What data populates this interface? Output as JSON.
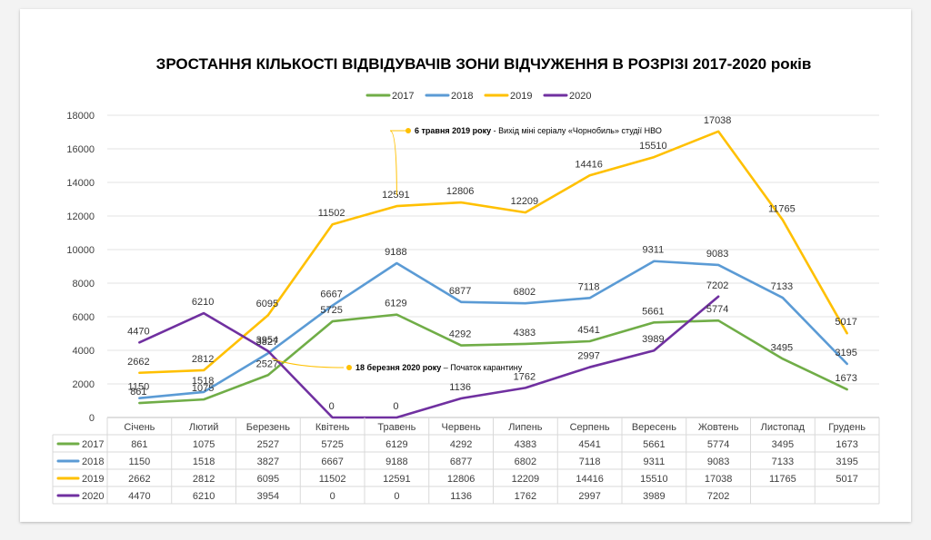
{
  "chart_data": {
    "type": "line",
    "title": "ЗРОСТАННЯ КІЛЬКОСТІ ВІДВІДУВАЧІВ ЗОНИ ВІДЧУЖЕННЯ В РОЗРІЗІ 2017-2020 років",
    "categories": [
      "Січень",
      "Лютий",
      "Березень",
      "Квітень",
      "Травень",
      "Червень",
      "Липень",
      "Серпень",
      "Вересень",
      "Жовтень",
      "Листопад",
      "Грудень"
    ],
    "ylim": [
      0,
      18000
    ],
    "yticks": [
      0,
      2000,
      4000,
      6000,
      8000,
      10000,
      12000,
      14000,
      16000,
      18000
    ],
    "grid": true,
    "legend_position": "top",
    "series": [
      {
        "name": "2017",
        "color": "#70ad47",
        "values": [
          861,
          1075,
          2527,
          5725,
          6129,
          4292,
          4383,
          4541,
          5661,
          5774,
          3495,
          1673
        ]
      },
      {
        "name": "2018",
        "color": "#5b9bd5",
        "values": [
          1150,
          1518,
          3827,
          6667,
          9188,
          6877,
          6802,
          7118,
          9311,
          9083,
          7133,
          3195
        ]
      },
      {
        "name": "2019",
        "color": "#ffc000",
        "values": [
          2662,
          2812,
          6095,
          11502,
          12591,
          12806,
          12209,
          14416,
          15510,
          17038,
          11765,
          5017
        ]
      },
      {
        "name": "2020",
        "color": "#7030a0",
        "values": [
          4470,
          6210,
          3954,
          0,
          0,
          1136,
          1762,
          2997,
          3989,
          7202,
          null,
          null
        ]
      }
    ],
    "annotations": [
      {
        "series": "2019",
        "index": 4,
        "bold": "6 травня 2019 року",
        "text": " - Вихід міні серіалу «Чорнобиль» студії НВО"
      },
      {
        "series": "2020",
        "index": 2,
        "bold": "18 березня 2020 року",
        "text": " – Початок карантину"
      }
    ]
  }
}
